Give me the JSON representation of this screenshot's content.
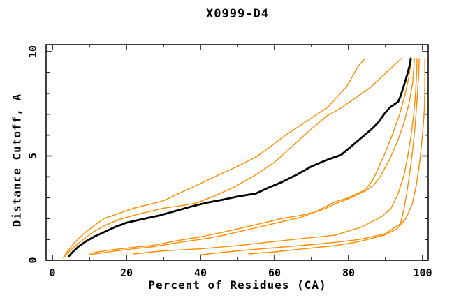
{
  "chart_data": {
    "type": "line",
    "title": "X0999-D4",
    "xlabel": "Percent of Residues (CA)",
    "ylabel": "Distance Cutoff, A",
    "xlim": [
      0,
      100
    ],
    "ylim": [
      0,
      10
    ],
    "xticks": [
      0,
      20,
      40,
      60,
      80,
      100
    ],
    "xminor": [
      10,
      30,
      50,
      70,
      90
    ],
    "yticks": [
      0,
      5,
      10
    ],
    "yminor": [
      1,
      2,
      3,
      4,
      6,
      7,
      8,
      9
    ],
    "grid": false,
    "legend": "none",
    "colors": {
      "highlight": "#000000",
      "models": "#ff8c00"
    },
    "series": [
      {
        "name": "highlighted-model",
        "color": "#000000",
        "width": 2.8,
        "points": [
          [
            4.5,
            0.2
          ],
          [
            5.5,
            0.4
          ],
          [
            7,
            0.65
          ],
          [
            9,
            0.9
          ],
          [
            11.5,
            1.15
          ],
          [
            14,
            1.35
          ],
          [
            17,
            1.6
          ],
          [
            20,
            1.8
          ],
          [
            25,
            2.0
          ],
          [
            29,
            2.15
          ],
          [
            34,
            2.4
          ],
          [
            38,
            2.6
          ],
          [
            41.5,
            2.75
          ],
          [
            46,
            2.9
          ],
          [
            50,
            3.05
          ],
          [
            55,
            3.2
          ],
          [
            58,
            3.45
          ],
          [
            62,
            3.75
          ],
          [
            66,
            4.1
          ],
          [
            70,
            4.5
          ],
          [
            74,
            4.8
          ],
          [
            78,
            5.05
          ],
          [
            81,
            5.5
          ],
          [
            84,
            5.95
          ],
          [
            86,
            6.25
          ],
          [
            88,
            6.6
          ],
          [
            89.6,
            7.0
          ],
          [
            91,
            7.3
          ],
          [
            93.4,
            7.6
          ],
          [
            94,
            7.85
          ],
          [
            95,
            8.4
          ],
          [
            96,
            9.0
          ],
          [
            96.5,
            9.35
          ],
          [
            96.8,
            9.67
          ]
        ]
      },
      {
        "name": "model-1",
        "color": "#ff8c00",
        "width": 1.4,
        "points": [
          [
            3,
            0.12
          ],
          [
            4,
            0.4
          ],
          [
            6,
            0.85
          ],
          [
            9,
            1.35
          ],
          [
            12,
            1.75
          ],
          [
            14,
            2.0
          ],
          [
            18,
            2.25
          ],
          [
            22,
            2.5
          ],
          [
            26,
            2.67
          ],
          [
            30,
            2.85
          ],
          [
            35,
            3.27
          ],
          [
            40,
            3.68
          ],
          [
            45,
            4.1
          ],
          [
            50,
            4.5
          ],
          [
            55,
            4.95
          ],
          [
            57,
            5.2
          ],
          [
            63,
            6.0
          ],
          [
            69,
            6.7
          ],
          [
            74.5,
            7.35
          ],
          [
            79.6,
            8.35
          ],
          [
            82.6,
            9.3
          ],
          [
            84.5,
            9.67
          ]
        ]
      },
      {
        "name": "model-2",
        "color": "#ff8c00",
        "width": 1.4,
        "points": [
          [
            3,
            0.12
          ],
          [
            5,
            0.5
          ],
          [
            8,
            0.95
          ],
          [
            11,
            1.35
          ],
          [
            14,
            1.65
          ],
          [
            18,
            1.95
          ],
          [
            23,
            2.2
          ],
          [
            30,
            2.5
          ],
          [
            35,
            2.62
          ],
          [
            39,
            2.75
          ],
          [
            44,
            3.1
          ],
          [
            49,
            3.5
          ],
          [
            55,
            4.1
          ],
          [
            60,
            4.7
          ],
          [
            65,
            5.5
          ],
          [
            70,
            6.3
          ],
          [
            74,
            6.9
          ],
          [
            78,
            7.3
          ],
          [
            82,
            7.8
          ],
          [
            86,
            8.3
          ],
          [
            89,
            8.8
          ],
          [
            92,
            9.3
          ],
          [
            94.3,
            9.67
          ]
        ]
      },
      {
        "name": "model-3",
        "color": "#ff8c00",
        "width": 1.4,
        "points": [
          [
            10,
            0.33
          ],
          [
            16,
            0.5
          ],
          [
            22,
            0.62
          ],
          [
            27.4,
            0.72
          ],
          [
            34,
            0.95
          ],
          [
            40,
            1.12
          ],
          [
            45,
            1.3
          ],
          [
            50,
            1.5
          ],
          [
            56,
            1.75
          ],
          [
            62,
            2.0
          ],
          [
            67,
            2.15
          ],
          [
            70.8,
            2.3
          ],
          [
            76.4,
            2.8
          ],
          [
            80,
            3.0
          ],
          [
            84.3,
            3.35
          ],
          [
            86.4,
            3.8
          ],
          [
            88,
            4.4
          ],
          [
            90,
            5.2
          ],
          [
            92,
            6.1
          ],
          [
            93.8,
            7.0
          ],
          [
            95.2,
            7.9
          ],
          [
            96.3,
            8.8
          ],
          [
            97,
            9.67
          ]
        ]
      },
      {
        "name": "model-4",
        "color": "#ff8c00",
        "width": 1.4,
        "points": [
          [
            10,
            0.26
          ],
          [
            16,
            0.42
          ],
          [
            22,
            0.55
          ],
          [
            27.4,
            0.65
          ],
          [
            34,
            0.85
          ],
          [
            40,
            1.0
          ],
          [
            45,
            1.15
          ],
          [
            50,
            1.35
          ],
          [
            56,
            1.6
          ],
          [
            62,
            1.85
          ],
          [
            67,
            2.05
          ],
          [
            70.8,
            2.3
          ],
          [
            74,
            2.5
          ],
          [
            76.4,
            2.7
          ],
          [
            80,
            2.95
          ],
          [
            84.3,
            3.3
          ],
          [
            86.8,
            3.6
          ],
          [
            88.5,
            4.0
          ],
          [
            91,
            4.8
          ],
          [
            93.2,
            5.7
          ],
          [
            95,
            6.6
          ],
          [
            96.3,
            7.5
          ],
          [
            97.3,
            8.5
          ],
          [
            97.8,
            9.67
          ]
        ]
      },
      {
        "name": "model-5",
        "color": "#ff8c00",
        "width": 1.4,
        "points": [
          [
            22,
            0.3
          ],
          [
            30,
            0.45
          ],
          [
            40,
            0.55
          ],
          [
            50,
            0.7
          ],
          [
            60,
            0.9
          ],
          [
            68,
            1.05
          ],
          [
            76.4,
            1.2
          ],
          [
            83.6,
            1.6
          ],
          [
            89,
            2.1
          ],
          [
            91.5,
            2.5
          ],
          [
            93.4,
            3.2
          ],
          [
            95,
            4.1
          ],
          [
            96,
            5.0
          ],
          [
            96.9,
            6.0
          ],
          [
            97.6,
            7.0
          ],
          [
            98.1,
            8.0
          ],
          [
            98.4,
            9.0
          ],
          [
            98.5,
            9.67
          ]
        ]
      },
      {
        "name": "model-6",
        "color": "#ff8c00",
        "width": 1.4,
        "points": [
          [
            40,
            0.26
          ],
          [
            50,
            0.45
          ],
          [
            60,
            0.6
          ],
          [
            68,
            0.72
          ],
          [
            76.4,
            0.86
          ],
          [
            83,
            1.0
          ],
          [
            89.6,
            1.25
          ],
          [
            94,
            1.75
          ],
          [
            94.9,
            2.4
          ],
          [
            95.8,
            3.3
          ],
          [
            96.6,
            4.3
          ],
          [
            97.4,
            5.4
          ],
          [
            98,
            6.5
          ],
          [
            98.5,
            7.7
          ],
          [
            98.9,
            8.8
          ],
          [
            99.1,
            9.67
          ]
        ]
      },
      {
        "name": "model-7",
        "color": "#ff8c00",
        "width": 1.4,
        "points": [
          [
            53,
            0.3
          ],
          [
            60,
            0.4
          ],
          [
            68,
            0.55
          ],
          [
            76.4,
            0.7
          ],
          [
            83,
            0.9
          ],
          [
            89.6,
            1.2
          ],
          [
            93,
            1.5
          ],
          [
            95.5,
            2.0
          ],
          [
            97.2,
            2.7
          ],
          [
            98.3,
            3.6
          ],
          [
            99.2,
            4.7
          ],
          [
            99.8,
            5.7
          ],
          [
            100.2,
            6.5
          ],
          [
            100.5,
            7.3
          ],
          [
            100.6,
            8.5
          ],
          [
            100.6,
            9.67
          ]
        ]
      }
    ]
  }
}
